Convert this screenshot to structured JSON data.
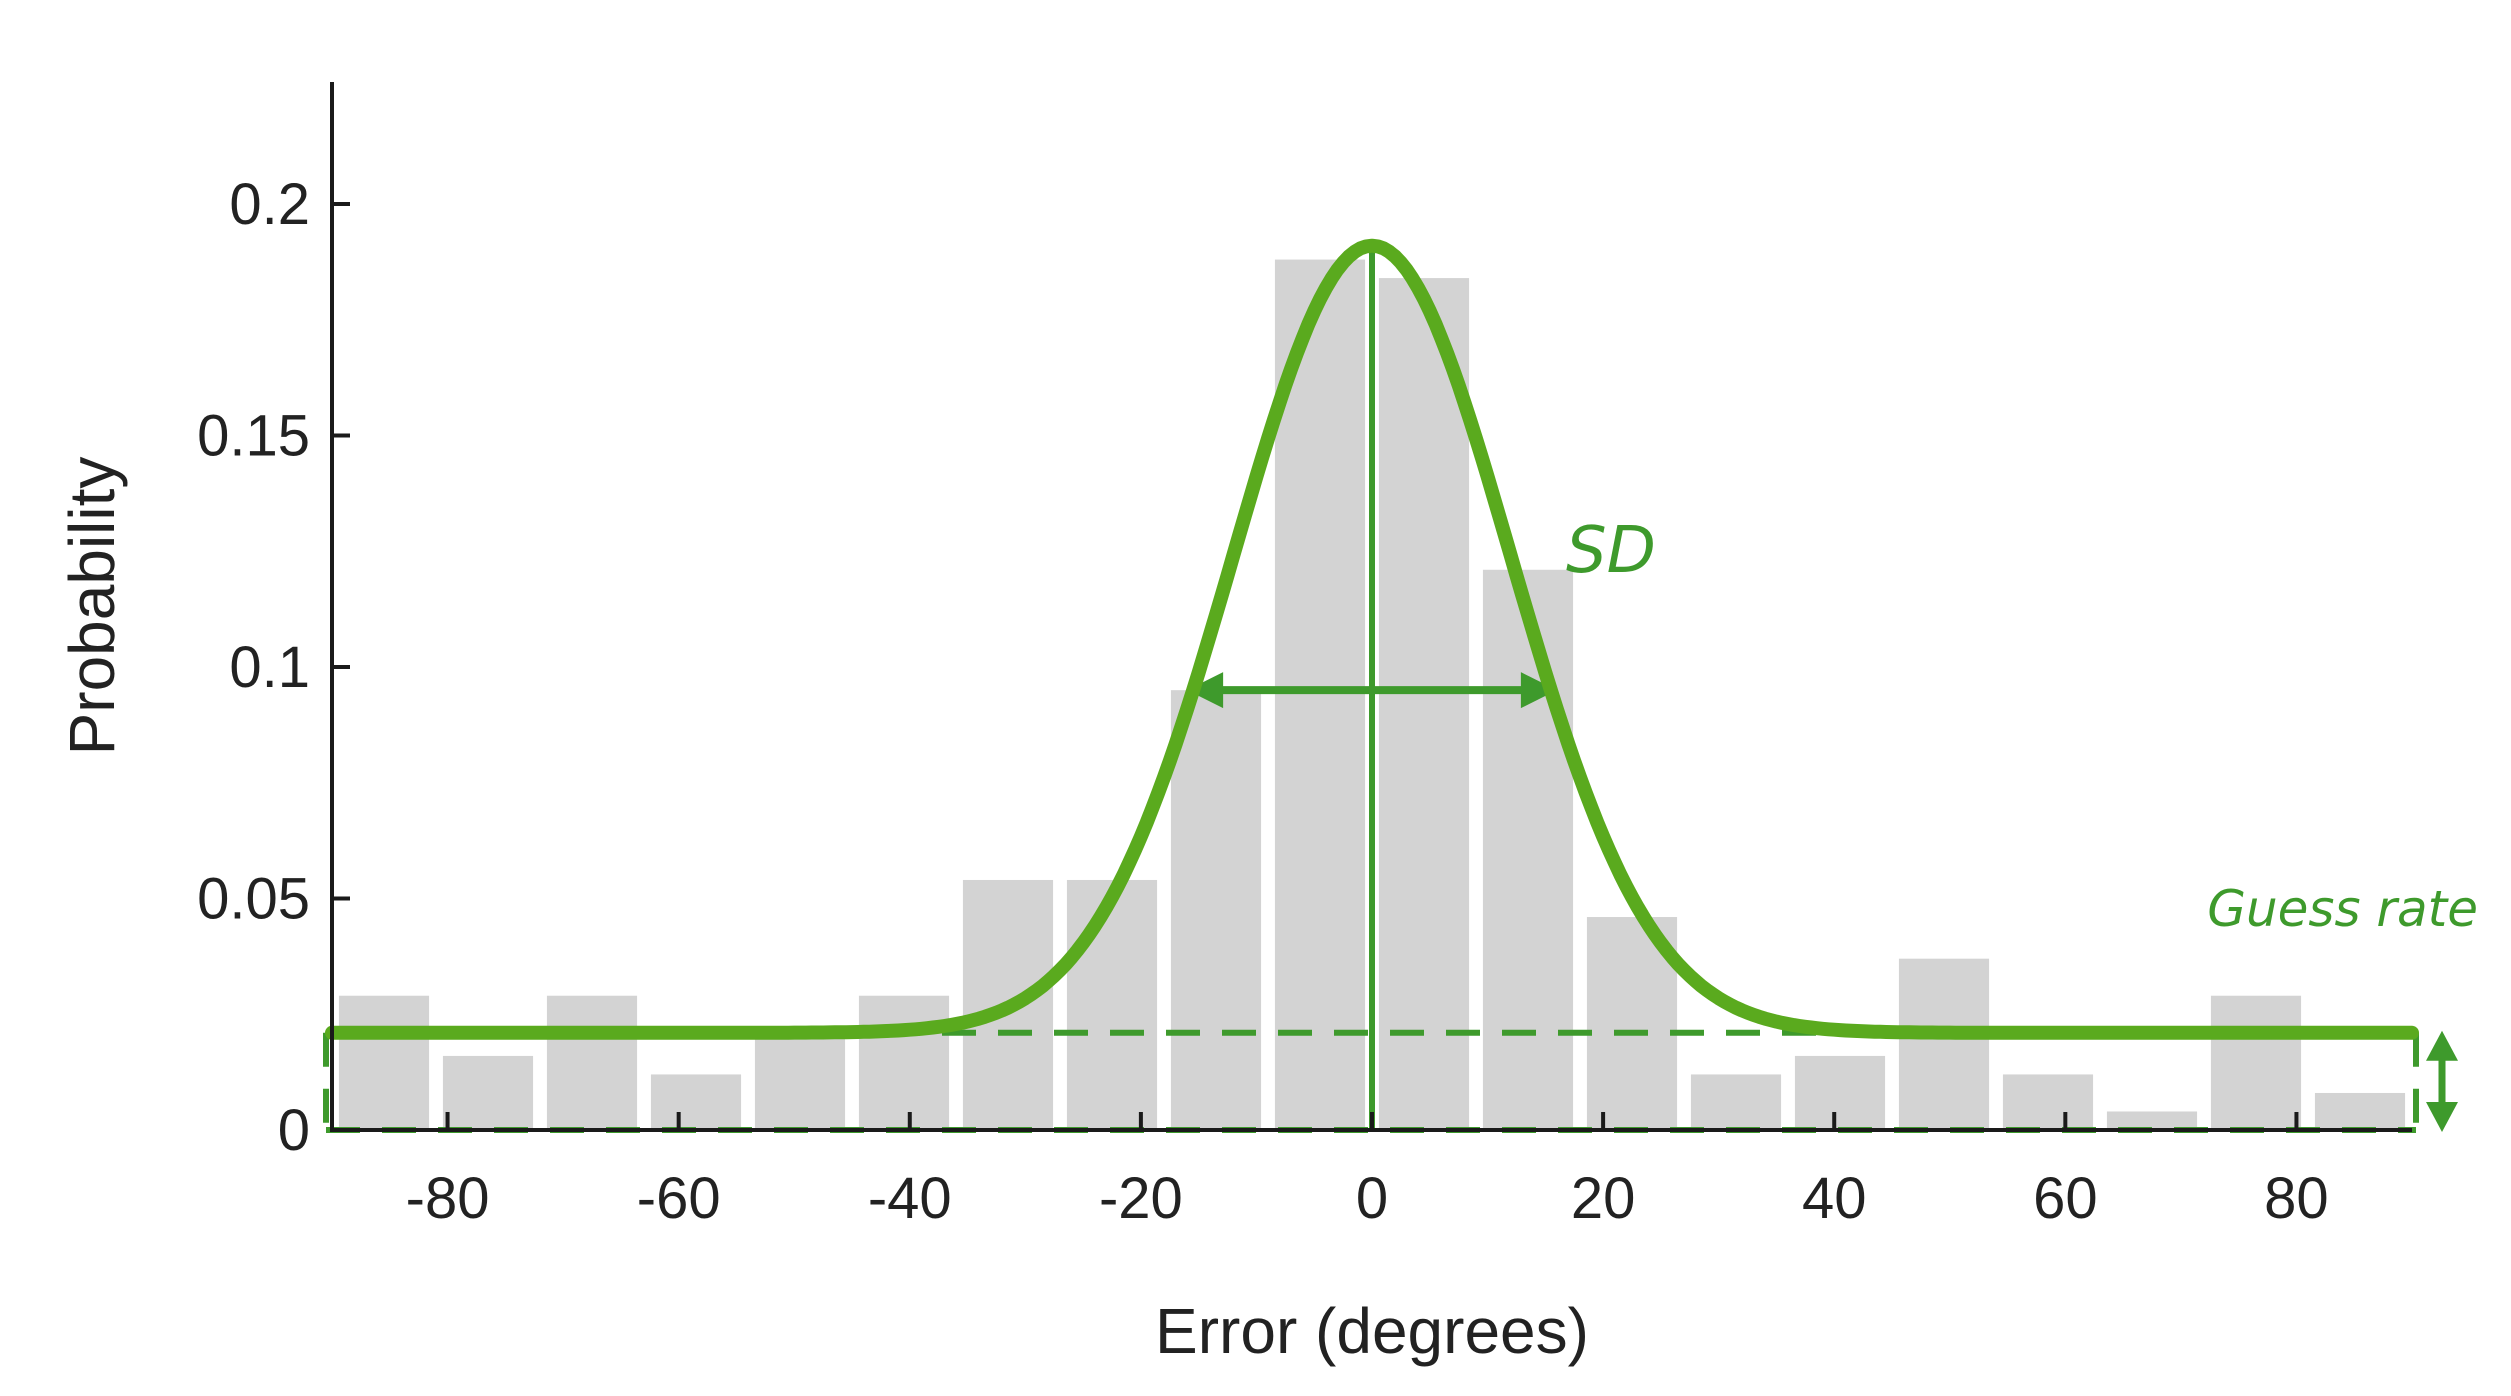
{
  "chart_data": {
    "type": "bar",
    "xlabel": "Error (degrees)",
    "ylabel": "Probability",
    "xlim": [
      -90,
      90
    ],
    "ylim": [
      0,
      0.225
    ],
    "xticks": [
      -80,
      -60,
      -40,
      -20,
      0,
      20,
      40,
      60,
      80
    ],
    "xtick_labels": [
      "-80",
      "-60",
      "-40",
      "-20",
      "0",
      "20",
      "40",
      "60",
      "80"
    ],
    "yticks": [
      0,
      0.05,
      0.1,
      0.15,
      0.2
    ],
    "ytick_labels": [
      "0",
      "0.05",
      "0.1",
      "0.15",
      "0.2"
    ],
    "bin_width": 9,
    "bins": {
      "centers": [
        -85.5,
        -76.5,
        -67.5,
        -58.5,
        -49.5,
        -40.5,
        -31.5,
        -22.5,
        -13.5,
        -4.5,
        4.5,
        13.5,
        22.5,
        31.5,
        40.5,
        49.5,
        58.5,
        67.5,
        76.5,
        85.5
      ],
      "values": [
        0.029,
        0.016,
        0.029,
        0.012,
        0.021,
        0.029,
        0.054,
        0.054,
        0.095,
        0.188,
        0.184,
        0.121,
        0.046,
        0.012,
        0.016,
        0.037,
        0.012,
        0.004,
        0.029,
        0.008
      ]
    },
    "fit": {
      "guess_rate": 0.021,
      "mu": 0,
      "sd": 12,
      "peak": 0.191
    },
    "annotations": {
      "sd_label": "SD",
      "sd_arrow": {
        "from": -16,
        "to": 16,
        "y": 0.095
      },
      "guess_label": "Guess rate"
    },
    "colors": {
      "bar": "#d3d3d3",
      "fit": "#5aaa1e",
      "annotation": "#3e9a2c",
      "axis": "#1a1a1a"
    }
  }
}
